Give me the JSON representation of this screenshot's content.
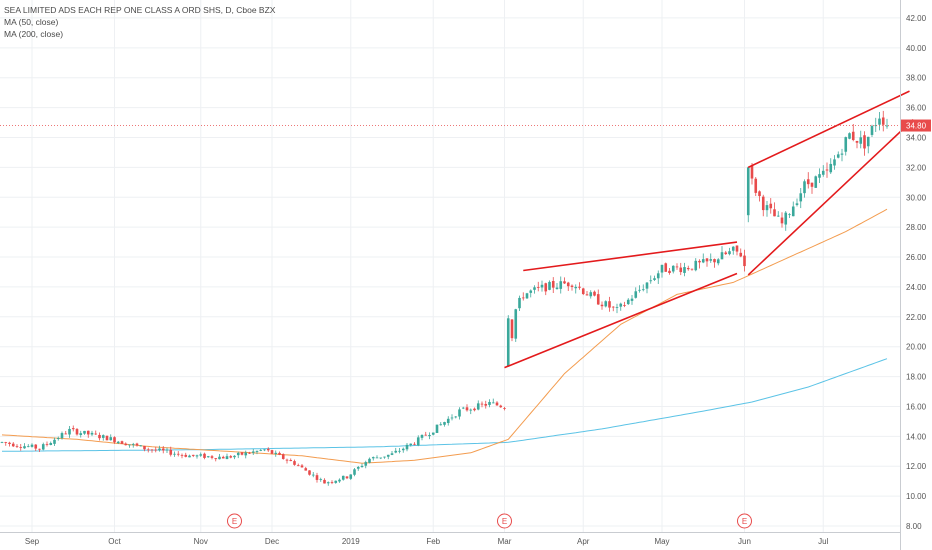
{
  "legend": {
    "title": "SEA LIMITED ADS EACH REP ONE CLASS A ORD SHS, D, Cboe BZX",
    "ma1": "MA (50, close)",
    "ma2": "MA (200, close)"
  },
  "colors": {
    "up": "#3aa89b",
    "down": "#e84b4b",
    "ma50": "#f39c4f",
    "ma200": "#5bc3e6",
    "pattern": "#e31a1c",
    "price_line": "#e84b4b",
    "earnings": "#e84b4b"
  },
  "chart_data": {
    "type": "candlestick",
    "y_ticks": [
      "8.00",
      "10.00",
      "12.00",
      "14.00",
      "16.00",
      "18.00",
      "20.00",
      "22.00",
      "24.00",
      "26.00",
      "28.00",
      "30.00",
      "32.00",
      "34.00",
      "36.00",
      "38.00",
      "40.00",
      "42.00"
    ],
    "y_tick_values": [
      8,
      10,
      12,
      14,
      16,
      18,
      20,
      22,
      24,
      26,
      28,
      30,
      32,
      34,
      36,
      38,
      40,
      42
    ],
    "ylim": [
      7.6,
      43.2
    ],
    "x_ticks": [
      "Sep",
      "Oct",
      "Nov",
      "Dec",
      "2019",
      "Feb",
      "Mar",
      "Apr",
      "May",
      "Jun",
      "Jul"
    ],
    "x_tick_index": [
      8,
      30,
      53,
      72,
      93,
      115,
      134,
      155,
      176,
      198,
      219
    ],
    "n_bars": 240,
    "current_price": "34.80",
    "current_price_value": 34.8,
    "earnings_marker": "E",
    "earnings_index": [
      62,
      134,
      198
    ],
    "candles_keypoints": [
      [
        0,
        13.6
      ],
      [
        10,
        13.2
      ],
      [
        18,
        14.4
      ],
      [
        28,
        13.9
      ],
      [
        38,
        13.2
      ],
      [
        50,
        12.7
      ],
      [
        60,
        12.6
      ],
      [
        70,
        13.1
      ],
      [
        78,
        12.2
      ],
      [
        86,
        10.9
      ],
      [
        92,
        11.3
      ],
      [
        98,
        12.5
      ],
      [
        104,
        12.8
      ],
      [
        110,
        13.6
      ],
      [
        116,
        14.6
      ],
      [
        122,
        15.7
      ],
      [
        130,
        16.2
      ],
      [
        134,
        16.0
      ],
      [
        135,
        19.0
      ],
      [
        137,
        22.5
      ],
      [
        139,
        23.5
      ],
      [
        145,
        24.0
      ],
      [
        152,
        24.3
      ],
      [
        158,
        23.2
      ],
      [
        164,
        22.4
      ],
      [
        170,
        23.8
      ],
      [
        176,
        25.2
      ],
      [
        182,
        25.3
      ],
      [
        188,
        25.6
      ],
      [
        195,
        26.4
      ],
      [
        197,
        26.2
      ],
      [
        198,
        25.4
      ],
      [
        199,
        31.5
      ],
      [
        203,
        29.5
      ],
      [
        208,
        28.2
      ],
      [
        214,
        30.8
      ],
      [
        220,
        31.6
      ],
      [
        226,
        34.2
      ],
      [
        230,
        33.6
      ],
      [
        234,
        35.5
      ],
      [
        236,
        34.9
      ]
    ],
    "ma50_keypoints": [
      [
        0,
        14.1
      ],
      [
        20,
        13.8
      ],
      [
        40,
        13.3
      ],
      [
        60,
        13.0
      ],
      [
        80,
        12.7
      ],
      [
        96,
        12.2
      ],
      [
        110,
        12.4
      ],
      [
        125,
        12.9
      ],
      [
        135,
        13.8
      ],
      [
        150,
        18.2
      ],
      [
        165,
        21.5
      ],
      [
        180,
        23.5
      ],
      [
        195,
        24.3
      ],
      [
        210,
        26.0
      ],
      [
        225,
        27.7
      ],
      [
        236,
        29.2
      ]
    ],
    "ma200_keypoints": [
      [
        0,
        13.0
      ],
      [
        50,
        13.1
      ],
      [
        100,
        13.3
      ],
      [
        135,
        13.6
      ],
      [
        160,
        14.5
      ],
      [
        185,
        15.6
      ],
      [
        200,
        16.3
      ],
      [
        215,
        17.3
      ],
      [
        236,
        19.2
      ]
    ],
    "pattern_lines": [
      {
        "from": [
          134,
          18.6
        ],
        "to": [
          196,
          24.9
        ]
      },
      {
        "from": [
          139,
          25.1
        ],
        "to": [
          196,
          27.0
        ]
      },
      {
        "from": [
          199,
          24.8
        ],
        "to": [
          243,
          35.2
        ]
      },
      {
        "from": [
          199,
          32.0
        ],
        "to": [
          242,
          37.1
        ]
      }
    ]
  }
}
